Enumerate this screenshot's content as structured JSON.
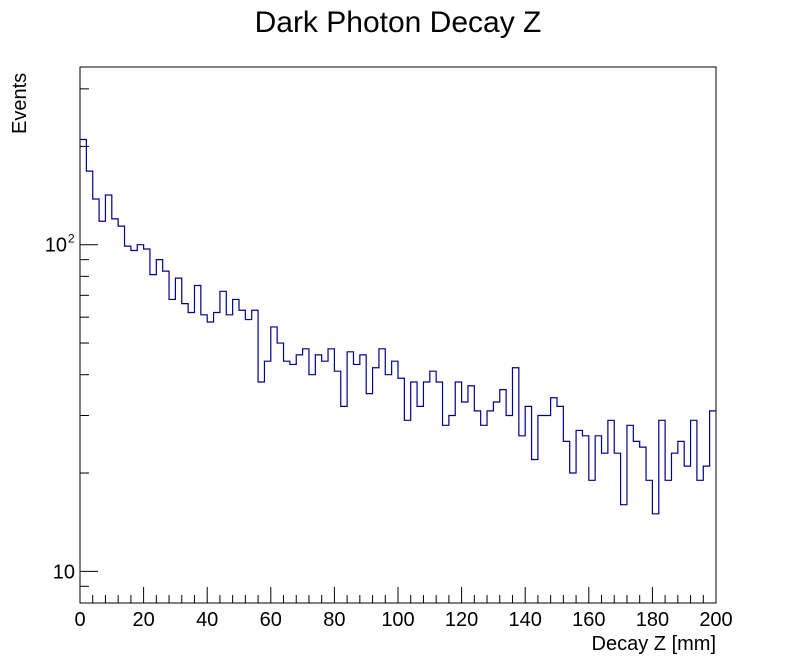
{
  "chart_data": {
    "type": "histogram",
    "title": "Dark Photon Decay Z",
    "xlabel": "Decay Z [mm]",
    "ylabel": "Events",
    "xlim": [
      0,
      200
    ],
    "ylim": [
      8,
      350
    ],
    "yscale": "log",
    "bin_width": 2,
    "line_color": "#00008b",
    "x_ticks": [
      "0",
      "20",
      "40",
      "60",
      "80",
      "100",
      "120",
      "140",
      "160",
      "180",
      "200"
    ],
    "y_ticks": [
      {
        "value": 10,
        "base": "10",
        "exp": ""
      },
      {
        "value": 100,
        "base": "10",
        "exp": "2"
      }
    ],
    "values": [
      210,
      168,
      138,
      118,
      142,
      120,
      114,
      99,
      96,
      100,
      97,
      81,
      90,
      83,
      68,
      79,
      66,
      62,
      75,
      61,
      58,
      62,
      72,
      61,
      68,
      63,
      59,
      63,
      38,
      44,
      56,
      50,
      44,
      43,
      46,
      48,
      40,
      46,
      44,
      48,
      41,
      32,
      47,
      43,
      46,
      35,
      42,
      48,
      40,
      44,
      39,
      29,
      38,
      32,
      38,
      41,
      38,
      28,
      30,
      38,
      33,
      37,
      31,
      28,
      31,
      33,
      36,
      30,
      42,
      26,
      32,
      22,
      30,
      30,
      34,
      32,
      25,
      20,
      27,
      26,
      19,
      26,
      23,
      29,
      23,
      16,
      28,
      25,
      24,
      19,
      15,
      29,
      19,
      23,
      25,
      21,
      29,
      19,
      21,
      31
    ]
  }
}
